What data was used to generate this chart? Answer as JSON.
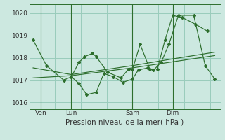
{
  "background_color": "#cce8e0",
  "grid_color": "#99ccbb",
  "line_color": "#2d6e2d",
  "spine_color": "#2d6e2d",
  "title": "Pression niveau de la mer( hPa )",
  "ylim": [
    1015.7,
    1020.4
  ],
  "yticks": [
    1016,
    1017,
    1018,
    1019,
    1020
  ],
  "xlim": [
    0,
    1.0
  ],
  "day_labels": [
    "Ven",
    "Lun",
    "Sam",
    "Dim"
  ],
  "day_positions": [
    0.06,
    0.22,
    0.54,
    0.75
  ],
  "vline_positions": [
    0.06,
    0.22,
    0.54,
    0.75
  ],
  "line1": {
    "x": [
      0.02,
      0.09,
      0.18,
      0.22,
      0.26,
      0.29,
      0.33,
      0.35,
      0.41,
      0.48,
      0.52,
      0.54,
      0.58,
      0.63,
      0.67,
      0.71,
      0.75,
      0.8,
      0.87,
      0.93
    ],
    "y": [
      1018.8,
      1017.65,
      1017.0,
      1017.15,
      1017.8,
      1018.05,
      1018.2,
      1018.05,
      1017.35,
      1017.1,
      1017.5,
      1017.5,
      1018.6,
      1017.5,
      1017.5,
      1018.8,
      1019.9,
      1019.8,
      1019.5,
      1019.2
    ]
  },
  "line2": {
    "x": [
      0.22,
      0.26,
      0.3,
      0.35,
      0.39,
      0.44,
      0.49,
      0.54,
      0.57,
      0.62,
      0.65,
      0.69,
      0.73,
      0.78,
      0.86,
      0.92,
      0.97
    ],
    "y": [
      1017.15,
      1016.85,
      1016.35,
      1016.45,
      1017.3,
      1017.15,
      1016.9,
      1017.05,
      1017.45,
      1017.55,
      1017.45,
      1017.8,
      1018.6,
      1019.9,
      1019.9,
      1017.65,
      1017.05
    ]
  },
  "line3": {
    "x": [
      0.02,
      0.22,
      0.54,
      0.75,
      0.97
    ],
    "y": [
      1017.1,
      1017.2,
      1017.55,
      1017.82,
      1018.1
    ]
  },
  "line4": {
    "x": [
      0.02,
      0.22,
      0.54,
      0.75,
      0.97
    ],
    "y": [
      1017.55,
      1017.25,
      1017.65,
      1017.95,
      1018.25
    ]
  },
  "tick_fontsize": 6.5,
  "label_fontsize": 7.5
}
